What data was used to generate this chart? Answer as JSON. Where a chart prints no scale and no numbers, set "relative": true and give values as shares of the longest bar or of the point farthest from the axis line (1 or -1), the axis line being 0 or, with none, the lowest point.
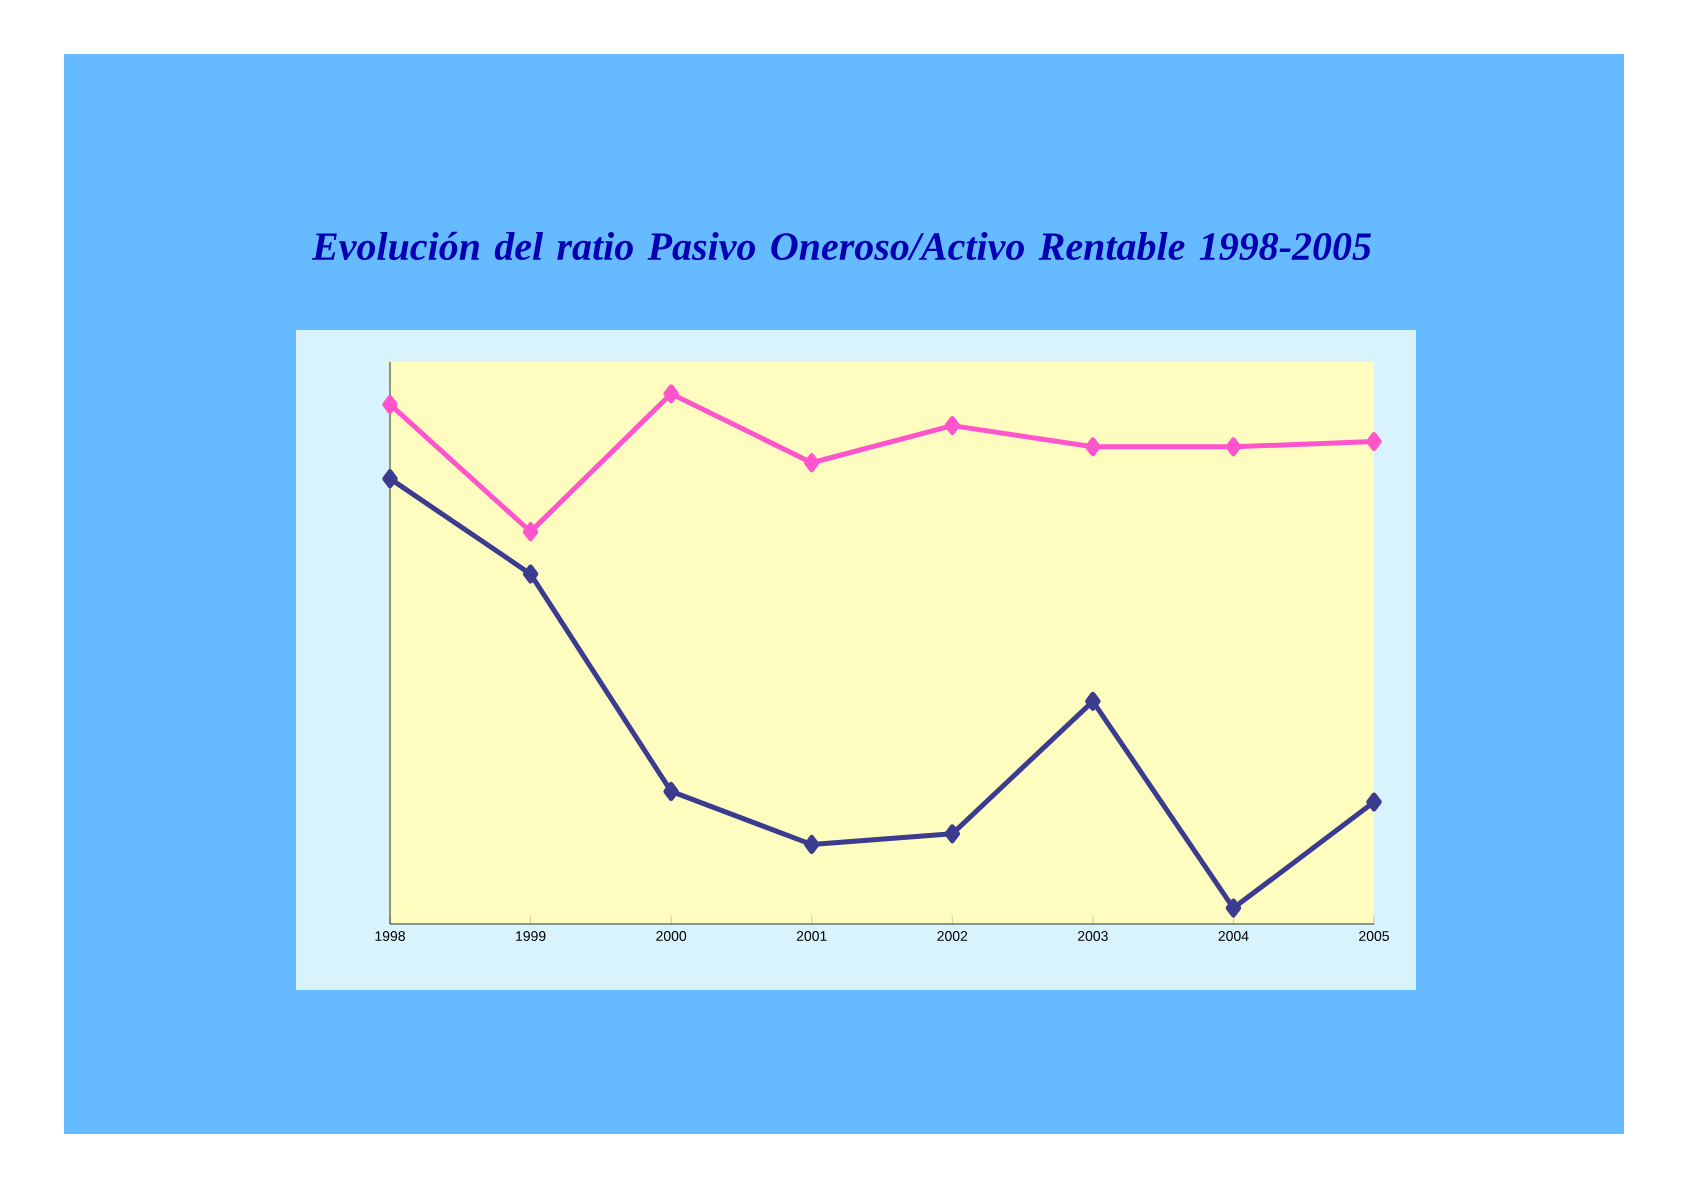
{
  "chart_data": {
    "type": "line",
    "title": "Evolución del ratio Pasivo Oneroso/Activo Rentable 1998-2005",
    "relative": true,
    "marker": "diamond",
    "line_style": "solid",
    "categories": [
      "1998",
      "1999",
      "2000",
      "2001",
      "2002",
      "2003",
      "2004",
      "2005"
    ],
    "series": [
      {
        "color": "#ff55cc",
        "values": [
          0.98,
          0.74,
          1,
          0.87,
          0.94,
          0.9,
          0.9,
          0.91
        ]
      },
      {
        "color": "#3b3b8f",
        "values": [
          0.84,
          0.66,
          0.25,
          0.15,
          0.17,
          0.42,
          0.03,
          0.23
        ]
      }
    ]
  }
}
